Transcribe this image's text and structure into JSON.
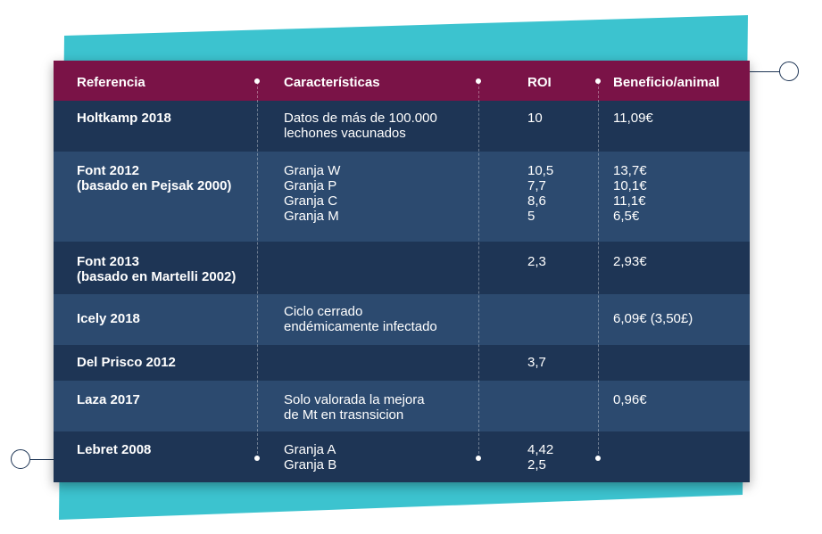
{
  "table": {
    "headers": [
      "Referencia",
      "Características",
      "ROI",
      "Beneficio/animal"
    ],
    "rows": [
      {
        "ref": "Holtkamp 2018",
        "char": "Datos de más de 100.000\nlechones vacunados",
        "roi": "10",
        "benefit": "11,09€"
      },
      {
        "ref": "Font 2012\n(basado en Pejsak 2000)",
        "char": "Granja W\nGranja P\nGranja C\nGranja M",
        "roi": "10,5\n7,7\n8,6\n5",
        "benefit": "13,7€\n10,1€\n11,1€\n6,5€"
      },
      {
        "ref": "Font 2013\n(basado en Martelli 2002)",
        "char": "",
        "roi": "2,3",
        "benefit": "2,93€"
      },
      {
        "ref": "Icely 2018",
        "char": "Ciclo cerrado\nendémicamente infectado",
        "roi": "",
        "benefit": "6,09€ (3,50£)"
      },
      {
        "ref": "Del Prisco 2012",
        "char": "",
        "roi": "3,7",
        "benefit": ""
      },
      {
        "ref": "Laza 2017",
        "char": "Solo valorada la mejora\nde Mt en trasnsicion",
        "roi": "",
        "benefit": "0,96€"
      },
      {
        "ref": "Lebret 2008",
        "char": "Granja A\nGranja B",
        "roi": "4,42\n2,5",
        "benefit": ""
      }
    ]
  },
  "colors": {
    "teal": "#3cc3cf",
    "header": "#7a1347",
    "row_dark": "#1e3555",
    "row_light": "#2c4a6f"
  }
}
